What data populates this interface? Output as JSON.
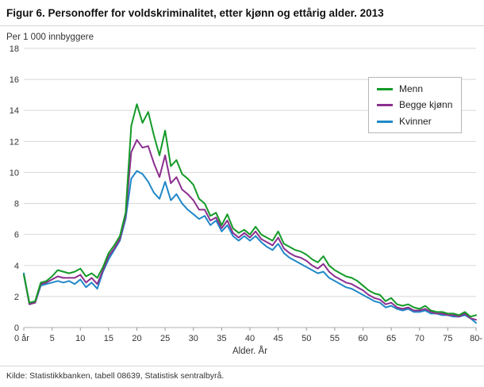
{
  "source": "Kilde: Statistikkbanken, tabell 08639, Statistisk sentralbyrå.",
  "chart_data": {
    "type": "line",
    "title": "Figur 6. Personoffer for voldskriminalitet, etter kjønn og ettårig alder. 2013",
    "ylabel": "Per 1 000 innbyggere",
    "xlabel": "Alder. År",
    "xlim": [
      0,
      80
    ],
    "ylim": [
      0,
      18
    ],
    "y_ticks": [
      0,
      2,
      4,
      6,
      8,
      10,
      12,
      14,
      16,
      18
    ],
    "x_tick_positions": [
      0,
      5,
      10,
      15,
      20,
      25,
      30,
      35,
      40,
      45,
      50,
      55,
      60,
      65,
      70,
      75,
      80
    ],
    "x_tick_labels": [
      "0 år",
      "5",
      "10",
      "15",
      "20",
      "25",
      "30",
      "35",
      "40",
      "45",
      "50",
      "55",
      "60",
      "65",
      "70",
      "75",
      "80-"
    ],
    "grid": "horizontal",
    "legend_position": "top-right",
    "x_unit": "age in single years, 0 to 80",
    "colors": {
      "grid": "#d8d8d8",
      "axis": "#b0b0b0",
      "tick_text": "#333333"
    },
    "series": [
      {
        "name": "Menn",
        "color": "#149a28",
        "values": [
          3.4,
          1.6,
          1.7,
          2.9,
          3.0,
          3.3,
          3.7,
          3.6,
          3.5,
          3.6,
          3.8,
          3.3,
          3.5,
          3.2,
          3.9,
          4.8,
          5.3,
          5.9,
          7.4,
          13.0,
          14.4,
          13.2,
          13.9,
          12.4,
          11.1,
          12.7,
          10.4,
          10.8,
          9.9,
          9.6,
          9.2,
          8.3,
          8.0,
          7.2,
          7.4,
          6.6,
          7.3,
          6.4,
          6.1,
          6.3,
          6.0,
          6.5,
          6.0,
          5.8,
          5.6,
          6.2,
          5.4,
          5.2,
          5.0,
          4.9,
          4.7,
          4.4,
          4.2,
          4.6,
          4.0,
          3.7,
          3.5,
          3.3,
          3.2,
          3.0,
          2.7,
          2.4,
          2.2,
          2.1,
          1.7,
          1.9,
          1.5,
          1.4,
          1.5,
          1.3,
          1.2,
          1.4,
          1.1,
          1.0,
          1.0,
          0.9,
          0.9,
          0.8,
          1.0,
          0.7,
          0.8
        ]
      },
      {
        "name": "Begge kjønn",
        "color": "#8b2f8f",
        "values": [
          3.4,
          1.5,
          1.6,
          2.8,
          2.9,
          3.1,
          3.3,
          3.2,
          3.2,
          3.2,
          3.4,
          2.9,
          3.2,
          2.8,
          3.7,
          4.6,
          5.1,
          5.7,
          7.2,
          11.3,
          12.1,
          11.6,
          11.7,
          10.6,
          9.7,
          11.1,
          9.3,
          9.7,
          8.9,
          8.6,
          8.2,
          7.6,
          7.6,
          6.9,
          7.1,
          6.4,
          6.9,
          6.1,
          5.8,
          6.1,
          5.8,
          6.2,
          5.7,
          5.5,
          5.3,
          5.8,
          5.1,
          4.8,
          4.6,
          4.5,
          4.3,
          4.0,
          3.8,
          4.1,
          3.6,
          3.3,
          3.1,
          2.9,
          2.8,
          2.6,
          2.4,
          2.1,
          1.9,
          1.8,
          1.5,
          1.6,
          1.3,
          1.2,
          1.3,
          1.1,
          1.1,
          1.2,
          1.0,
          0.9,
          0.9,
          0.8,
          0.8,
          0.7,
          0.9,
          0.6,
          0.5
        ]
      },
      {
        "name": "Kvinner",
        "color": "#2088c8",
        "values": [
          3.5,
          1.5,
          1.6,
          2.7,
          2.8,
          2.9,
          3.0,
          2.9,
          3.0,
          2.8,
          3.1,
          2.6,
          2.9,
          2.5,
          3.6,
          4.4,
          5.0,
          5.6,
          7.0,
          9.6,
          10.1,
          9.9,
          9.4,
          8.7,
          8.3,
          9.4,
          8.2,
          8.6,
          8.0,
          7.6,
          7.3,
          7.0,
          7.2,
          6.6,
          6.9,
          6.2,
          6.6,
          5.9,
          5.6,
          5.9,
          5.6,
          5.9,
          5.5,
          5.2,
          5.0,
          5.4,
          4.8,
          4.5,
          4.3,
          4.1,
          3.9,
          3.7,
          3.5,
          3.6,
          3.2,
          3.0,
          2.8,
          2.6,
          2.5,
          2.3,
          2.1,
          1.9,
          1.7,
          1.6,
          1.3,
          1.4,
          1.2,
          1.1,
          1.2,
          1.0,
          1.0,
          1.1,
          0.9,
          0.9,
          0.8,
          0.8,
          0.7,
          0.7,
          0.8,
          0.6,
          0.3
        ]
      }
    ]
  }
}
